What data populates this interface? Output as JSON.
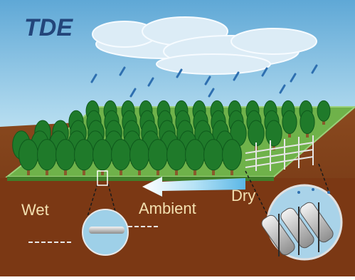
{
  "title": "TDE",
  "labels": {
    "wet": "Wet",
    "ambient": "Ambient",
    "dry": "Dry"
  },
  "colors": {
    "sky": "#8ec3e4",
    "soil": "#7a3a16",
    "grass": "#6fb24a",
    "tree": "#1f7a2a",
    "trunk": "#8a5a2b",
    "title": "#23457a",
    "label": "#f3e0b0",
    "arrow": "#9fd6ef",
    "rain": "#2e6fb0",
    "panel": "#c7c7c7"
  }
}
